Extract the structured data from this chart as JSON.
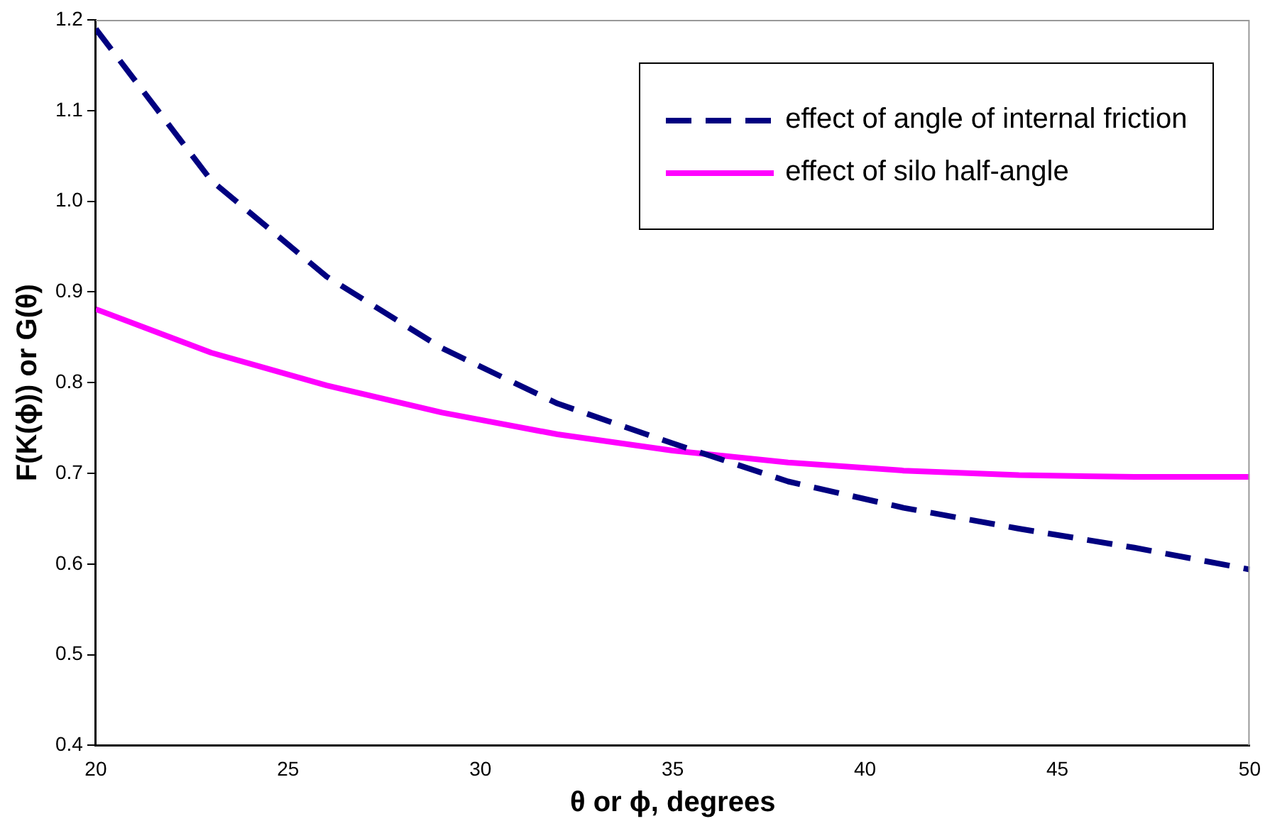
{
  "chart_data": {
    "type": "line",
    "xlabel": "θ or ϕ, degrees",
    "ylabel": "F(K(ϕ)) or G(θ)",
    "x": [
      20,
      23,
      26,
      29,
      32,
      35,
      38,
      41,
      44,
      47,
      50
    ],
    "series": [
      {
        "name": "effect of angle of internal friction",
        "color": "#000080",
        "line_style": "dashed",
        "values": [
          1.19,
          1.023,
          0.917,
          0.838,
          0.777,
          0.733,
          0.691,
          0.662,
          0.639,
          0.618,
          0.594
        ]
      },
      {
        "name": "effect of silo half-angle",
        "color": "#ff00ff",
        "line_style": "solid",
        "values": [
          0.881,
          0.833,
          0.797,
          0.767,
          0.743,
          0.725,
          0.712,
          0.703,
          0.698,
          0.696,
          0.696
        ]
      }
    ],
    "xlim": [
      20,
      50
    ],
    "xticks": [
      20,
      25,
      30,
      35,
      40,
      45,
      50
    ],
    "ylim": [
      0.4,
      1.2
    ],
    "yticks": [
      {
        "value": 0.4,
        "label": "0.4"
      },
      {
        "value": 0.5,
        "label": "0.5"
      },
      {
        "value": 0.6,
        "label": "0.6"
      },
      {
        "value": 0.7,
        "label": "0.7"
      },
      {
        "value": 0.8,
        "label": "0.8"
      },
      {
        "value": 0.9,
        "label": "0.9"
      },
      {
        "value": 1.0,
        "label": "1.0"
      },
      {
        "value": 1.1,
        "label": "1.1"
      },
      {
        "value": 1.2,
        "label": "1.2"
      }
    ],
    "grid": false,
    "legend": "top right",
    "marker": "none"
  }
}
